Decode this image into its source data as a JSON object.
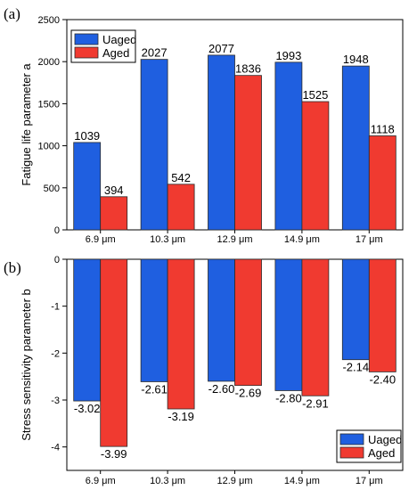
{
  "chart_data": [
    {
      "panel_label": "(a)",
      "type": "bar",
      "ylabel": "Fatigue life parameter a",
      "ylim": [
        0,
        2500
      ],
      "yticks": [
        0,
        500,
        1000,
        1500,
        2000,
        2500
      ],
      "categories": [
        "6.9 μm",
        "10.3 μm",
        "12.9 μm",
        "14.9 μm",
        "17 μm"
      ],
      "series": [
        {
          "name": "Uaged",
          "color": "#1f5fe0",
          "values": [
            1039,
            2027,
            2077,
            1993,
            1948
          ],
          "labels": [
            "1039",
            "2027",
            "2077",
            "1993",
            "1948"
          ]
        },
        {
          "name": "Aged",
          "color": "#f03a30",
          "values": [
            394,
            542,
            1836,
            1525,
            1118
          ],
          "labels": [
            "394",
            "542",
            "1836",
            "1525",
            "1118"
          ]
        }
      ],
      "legend": "top-left"
    },
    {
      "panel_label": "(b)",
      "type": "bar",
      "ylabel": "Stress sensitivity parameter b",
      "ylim": [
        -4.5,
        0
      ],
      "yticks": [
        0,
        -1,
        -2,
        -3,
        -4
      ],
      "categories": [
        "6.9 μm",
        "10.3 μm",
        "12.9 μm",
        "14.9 μm",
        "17 μm"
      ],
      "series": [
        {
          "name": "Uaged",
          "color": "#1f5fe0",
          "values": [
            -3.02,
            -2.61,
            -2.6,
            -2.8,
            -2.14
          ],
          "labels": [
            "-3.02",
            "-2.61",
            "-2.60",
            "-2.80",
            "-2.14"
          ]
        },
        {
          "name": "Aged",
          "color": "#f03a30",
          "values": [
            -3.99,
            -3.19,
            -2.69,
            -2.91,
            -2.4
          ],
          "labels": [
            "-3.99",
            "-3.19",
            "-2.69",
            "-2.91",
            "-2.40"
          ]
        }
      ],
      "legend": "bottom-right"
    }
  ]
}
